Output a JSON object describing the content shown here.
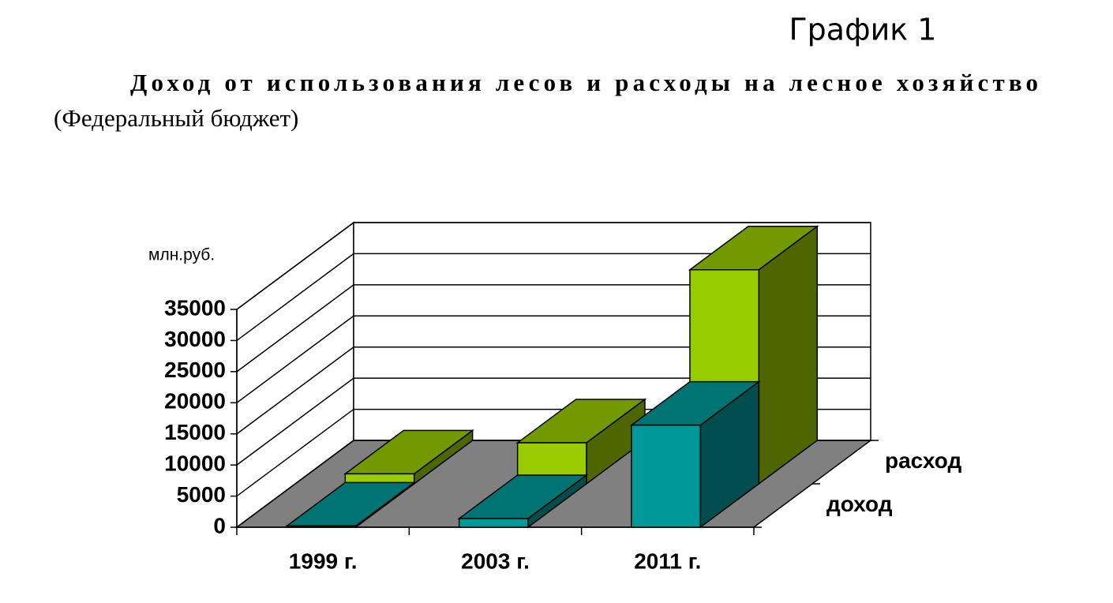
{
  "heading": "График 1",
  "chart_data": {
    "type": "bar3d",
    "title": "Доход от использования лесов и расходы на лесное хозяйство",
    "subtitle": "(Федеральный бюджет)",
    "ylabel": "млн.руб.",
    "categories": [
      "1999 г.",
      "2003 г.",
      "2011 г."
    ],
    "series": [
      {
        "name": "доход",
        "color": "#009999",
        "values": [
          200,
          1400,
          16400
        ]
      },
      {
        "name": "расход",
        "color": "#99cc00",
        "values": [
          1600,
          6600,
          34400
        ]
      }
    ],
    "ylim": [
      0,
      35000
    ],
    "yticks": [
      0,
      5000,
      10000,
      15000,
      20000,
      25000,
      30000,
      35000
    ],
    "grid": true
  }
}
